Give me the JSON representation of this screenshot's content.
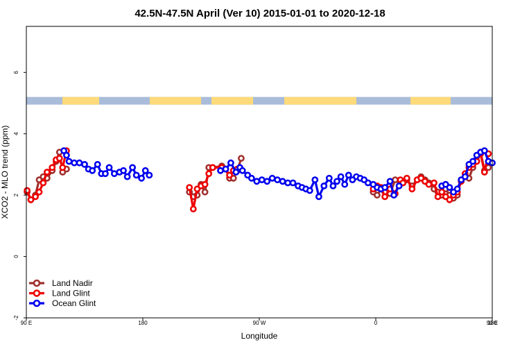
{
  "chart_data": {
    "type": "line",
    "title": "42.5N-47.5N April (Ver 10)   2015-01-01 to 2020-12-18",
    "xlabel": "Longitude",
    "ylabel": "XCO2 - MLO trend (ppm)",
    "xlim": [
      90,
      450
    ],
    "ylim": [
      -2,
      7.5
    ],
    "x_ticks": [
      {
        "value": 90,
        "label": "90 E"
      },
      {
        "value": 180,
        "label": "180"
      },
      {
        "value": 270,
        "label": "90 W"
      },
      {
        "value": 360,
        "label": "0"
      },
      {
        "value": 450,
        "label": "90 E"
      }
    ],
    "x_ticks_extra": [
      {
        "value": 450,
        "label": "180"
      }
    ],
    "y_ticks": [
      {
        "value": -2,
        "label": "-2"
      },
      {
        "value": 0,
        "label": "0"
      },
      {
        "value": 2,
        "label": "2"
      },
      {
        "value": 4,
        "label": "4"
      },
      {
        "value": 6,
        "label": "6"
      }
    ],
    "surface_strip": {
      "y_range": [
        4.95,
        5.2
      ],
      "land_color": "#FFDA7A",
      "ocean_color": "#A9BCDA",
      "land_segments": [
        [
          90,
          143
        ],
        [
          216,
          290
        ],
        [
          305,
          365
        ],
        [
          410,
          514
        ],
        [
          592,
          650
        ]
      ]
    },
    "series": [
      {
        "name": "Land Nadir",
        "color": "#A0302D",
        "points": [
          [
            90.6,
            2.1
          ],
          [
            93.5,
            1.85
          ],
          [
            97,
            2.0
          ],
          [
            99.9,
            2.5
          ],
          [
            103,
            2.6
          ],
          [
            106,
            2.55
          ],
          [
            110,
            2.8
          ],
          [
            113,
            3.1
          ],
          [
            115.6,
            3.4
          ],
          [
            118,
            2.75
          ],
          [
            121,
            2.85
          ],
          [
            216,
            2.1
          ],
          [
            219,
            1.95
          ],
          [
            222,
            2.0
          ],
          [
            225,
            2.35
          ],
          [
            228,
            2.1
          ],
          [
            231,
            2.9
          ],
          [
            234,
            2.9
          ],
          [
            241,
            2.95
          ],
          [
            244,
            2.85
          ],
          [
            247,
            2.55
          ],
          [
            250,
            2.55
          ],
          [
            253,
            2.8
          ],
          [
            256,
            3.2
          ],
          [
            358,
            2.1
          ],
          [
            361,
            2.0
          ],
          [
            364,
            2.2
          ],
          [
            367,
            2.1
          ],
          [
            371,
            2.05
          ],
          [
            375,
            2.5
          ],
          [
            379,
            2.4
          ],
          [
            381,
            2.4
          ],
          [
            384,
            2.5
          ],
          [
            388,
            2.3
          ],
          [
            392,
            2.5
          ],
          [
            395,
            2.6
          ],
          [
            398,
            2.5
          ],
          [
            401,
            2.4
          ],
          [
            405,
            2.2
          ],
          [
            408,
            2.1
          ],
          [
            411,
            2.0
          ],
          [
            414,
            2.2
          ],
          [
            417,
            2.0
          ],
          [
            420,
            1.9
          ],
          [
            423,
            2.0
          ],
          [
            426,
            2.5
          ],
          [
            429,
            2.6
          ],
          [
            432,
            2.55
          ],
          [
            435,
            2.9
          ],
          [
            438,
            3.1
          ],
          [
            441,
            3.4
          ],
          [
            444,
            2.8
          ],
          [
            447,
            2.9
          ]
        ]
      },
      {
        "name": "Land Glint",
        "color": "#EE0000",
        "points": [
          [
            90.6,
            2.15
          ],
          [
            93.5,
            1.85
          ],
          [
            97,
            1.95
          ],
          [
            99.9,
            2.1
          ],
          [
            103,
            2.4
          ],
          [
            106,
            2.75
          ],
          [
            110,
            2.9
          ],
          [
            113,
            3.15
          ],
          [
            115.6,
            3.2
          ],
          [
            118,
            2.9
          ],
          [
            121,
            3.45
          ],
          [
            216,
            2.25
          ],
          [
            219,
            1.55
          ],
          [
            222,
            2.2
          ],
          [
            225,
            2.3
          ],
          [
            228,
            2.35
          ],
          [
            231,
            2.7
          ],
          [
            234,
            2.9
          ],
          [
            241,
            2.9
          ],
          [
            244,
            2.85
          ],
          [
            247,
            2.65
          ],
          [
            250,
            2.8
          ],
          [
            253,
            2.85
          ],
          [
            358,
            2.2
          ],
          [
            361,
            2.3
          ],
          [
            364,
            2.25
          ],
          [
            367,
            1.95
          ],
          [
            371,
            2.2
          ],
          [
            375,
            2.05
          ],
          [
            379,
            2.5
          ],
          [
            381,
            2.4
          ],
          [
            384,
            2.55
          ],
          [
            388,
            2.2
          ],
          [
            392,
            2.5
          ],
          [
            395,
            2.55
          ],
          [
            398,
            2.45
          ],
          [
            401,
            2.35
          ],
          [
            405,
            2.4
          ],
          [
            408,
            1.95
          ],
          [
            411,
            2.1
          ],
          [
            414,
            1.95
          ],
          [
            417,
            1.85
          ],
          [
            420,
            2.0
          ],
          [
            423,
            2.1
          ],
          [
            426,
            2.45
          ],
          [
            429,
            2.7
          ],
          [
            432,
            2.9
          ],
          [
            435,
            3.0
          ],
          [
            438,
            3.1
          ],
          [
            441,
            3.35
          ],
          [
            444,
            2.75
          ],
          [
            447,
            3.35
          ]
        ]
      },
      {
        "name": "Ocean Glint",
        "color": "#0000EE",
        "points": [
          [
            119,
            3.45
          ],
          [
            121,
            3.3
          ],
          [
            123,
            3.1
          ],
          [
            127,
            3.05
          ],
          [
            131,
            3.05
          ],
          [
            135,
            3.0
          ],
          [
            138,
            2.85
          ],
          [
            141,
            2.8
          ],
          [
            145,
            3.0
          ],
          [
            148,
            2.7
          ],
          [
            151,
            2.7
          ],
          [
            154,
            2.9
          ],
          [
            158,
            2.7
          ],
          [
            162,
            2.75
          ],
          [
            165,
            2.8
          ],
          [
            168,
            2.6
          ],
          [
            172,
            2.9
          ],
          [
            175,
            2.65
          ],
          [
            179,
            2.55
          ],
          [
            182,
            2.8
          ],
          [
            185,
            2.65
          ],
          [
            240,
            2.8
          ],
          [
            244,
            2.85
          ],
          [
            248,
            3.05
          ],
          [
            252,
            2.75
          ],
          [
            255,
            2.9
          ],
          [
            257,
            2.8
          ],
          [
            261,
            2.65
          ],
          [
            264,
            2.55
          ],
          [
            268,
            2.45
          ],
          [
            272,
            2.5
          ],
          [
            276,
            2.45
          ],
          [
            280,
            2.55
          ],
          [
            284,
            2.5
          ],
          [
            288,
            2.45
          ],
          [
            292,
            2.4
          ],
          [
            296,
            2.4
          ],
          [
            300,
            2.3
          ],
          [
            303,
            2.25
          ],
          [
            306,
            2.2
          ],
          [
            309,
            2.15
          ],
          [
            313,
            2.5
          ],
          [
            316,
            1.95
          ],
          [
            320,
            2.3
          ],
          [
            324,
            2.55
          ],
          [
            327,
            2.3
          ],
          [
            330,
            2.45
          ],
          [
            333,
            2.6
          ],
          [
            336,
            2.35
          ],
          [
            339,
            2.65
          ],
          [
            342,
            2.5
          ],
          [
            345,
            2.6
          ],
          [
            348,
            2.55
          ],
          [
            351,
            2.5
          ],
          [
            354,
            2.4
          ],
          [
            358,
            2.35
          ],
          [
            361,
            2.25
          ],
          [
            364,
            2.2
          ],
          [
            367,
            2.25
          ],
          [
            371,
            2.45
          ],
          [
            374,
            2.0
          ],
          [
            378,
            2.3
          ],
          [
            411,
            2.3
          ],
          [
            414,
            2.35
          ],
          [
            417,
            2.25
          ],
          [
            420,
            2.1
          ],
          [
            423,
            2.2
          ],
          [
            426,
            2.5
          ],
          [
            429,
            2.6
          ],
          [
            432,
            3.0
          ],
          [
            435,
            3.1
          ],
          [
            438,
            3.3
          ],
          [
            441,
            3.4
          ],
          [
            444,
            3.45
          ],
          [
            447,
            3.1
          ],
          [
            450,
            3.05
          ]
        ]
      }
    ],
    "legend": {
      "position": "bottom-left",
      "entries": [
        "Land Nadir",
        "Land Glint",
        "Ocean Glint"
      ]
    }
  }
}
